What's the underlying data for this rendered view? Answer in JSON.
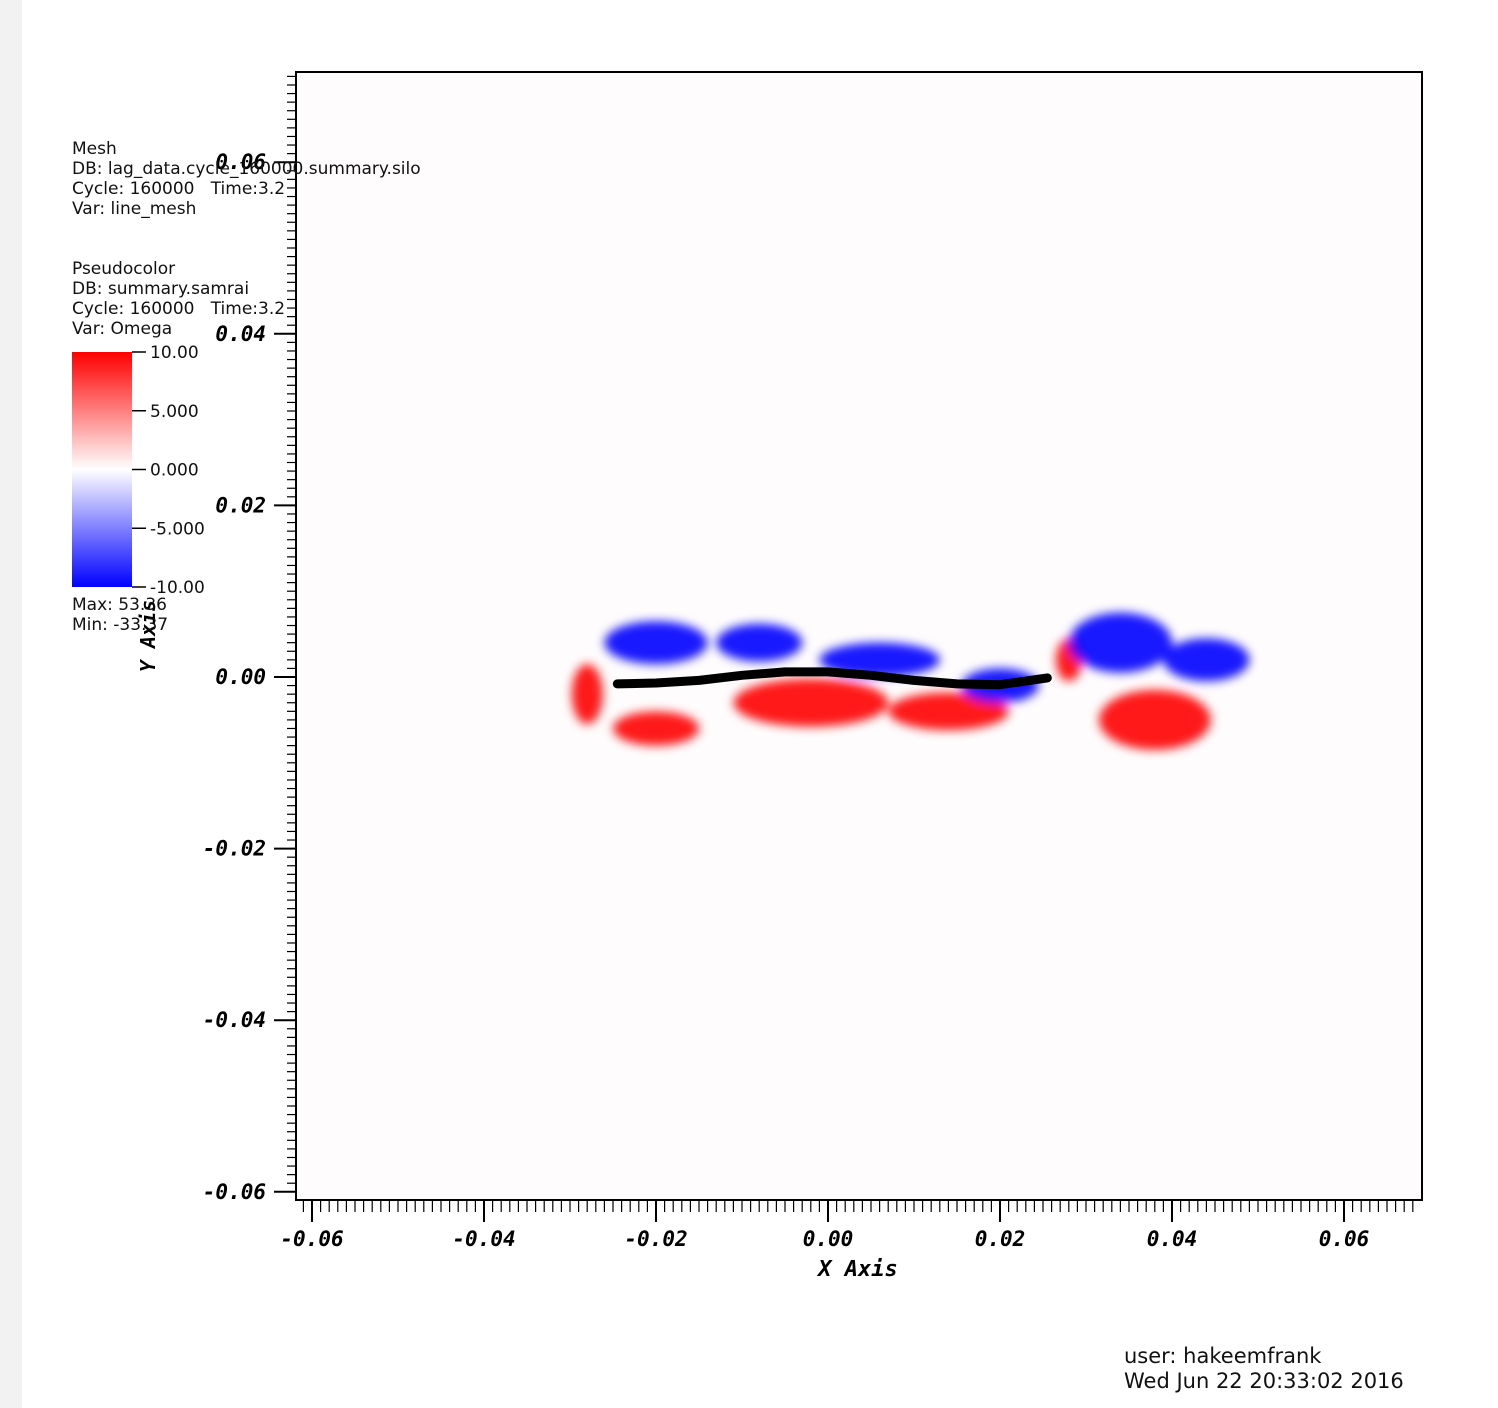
{
  "chart_data": {
    "type": "heatmap",
    "xlabel": "X Axis",
    "ylabel": "Y Axis",
    "xlim": [
      -0.062,
      0.069
    ],
    "ylim": [
      -0.061,
      0.071
    ],
    "x_ticks": [
      -0.06,
      -0.04,
      -0.02,
      0.0,
      0.02,
      0.04,
      0.06
    ],
    "y_ticks": [
      -0.06,
      -0.04,
      -0.02,
      0.0,
      0.02,
      0.04,
      0.06
    ],
    "x_tick_labels": [
      "-0.06",
      "-0.04",
      "-0.02",
      "0.00",
      "0.02",
      "0.04",
      "0.06"
    ],
    "y_tick_labels": [
      "-0.06",
      "-0.04",
      "-0.02",
      "0.00",
      "0.02",
      "0.04",
      "0.06"
    ],
    "colorbar": {
      "min": -10.0,
      "max": 10.0,
      "ticks": [
        10.0,
        5.0,
        0.0,
        -5.0,
        -10.0
      ],
      "tick_labels": [
        "10.00",
        "5.000",
        "0.000",
        "-5.000",
        "-10.00"
      ],
      "colors": {
        "high": "#ff0000",
        "mid": "#ffffff",
        "low": "#0000ff"
      }
    },
    "vorticity_regions": [
      {
        "sign": "positive",
        "cx": -0.028,
        "cy": -0.002,
        "rx": 0.0018,
        "ry": 0.0035
      },
      {
        "sign": "positive",
        "cx": -0.02,
        "cy": -0.006,
        "rx": 0.005,
        "ry": 0.002
      },
      {
        "sign": "positive",
        "cx": -0.002,
        "cy": -0.003,
        "rx": 0.009,
        "ry": 0.0028
      },
      {
        "sign": "positive",
        "cx": 0.014,
        "cy": -0.004,
        "rx": 0.007,
        "ry": 0.0022
      },
      {
        "sign": "positive",
        "cx": 0.028,
        "cy": 0.002,
        "rx": 0.0015,
        "ry": 0.0025
      },
      {
        "sign": "positive",
        "cx": 0.038,
        "cy": -0.005,
        "rx": 0.0065,
        "ry": 0.0035
      },
      {
        "sign": "negative",
        "cx": -0.02,
        "cy": 0.004,
        "rx": 0.006,
        "ry": 0.0025
      },
      {
        "sign": "negative",
        "cx": -0.008,
        "cy": 0.004,
        "rx": 0.005,
        "ry": 0.0022
      },
      {
        "sign": "negative",
        "cx": 0.006,
        "cy": 0.002,
        "rx": 0.007,
        "ry": 0.002
      },
      {
        "sign": "negative",
        "cx": 0.02,
        "cy": -0.001,
        "rx": 0.0045,
        "ry": 0.002
      },
      {
        "sign": "negative",
        "cx": 0.034,
        "cy": 0.004,
        "rx": 0.006,
        "ry": 0.0035
      },
      {
        "sign": "negative",
        "cx": 0.044,
        "cy": 0.002,
        "rx": 0.005,
        "ry": 0.0025
      }
    ],
    "line_mesh": {
      "x": [
        -0.0245,
        -0.02,
        -0.015,
        -0.01,
        -0.005,
        0.0,
        0.005,
        0.01,
        0.015,
        0.02,
        0.0255
      ],
      "y": [
        -0.0008,
        -0.0007,
        -0.0004,
        0.0002,
        0.0006,
        0.0006,
        0.0002,
        -0.0004,
        -0.0008,
        -0.0009,
        -0.0001
      ]
    }
  },
  "legend": {
    "mesh": {
      "title": "Mesh",
      "db": "DB: lag_data.cycle_160000.summary.silo",
      "cycle": "Cycle: 160000   Time:3.2",
      "var": "Var: line_mesh"
    },
    "pseudocolor": {
      "title": "Pseudocolor",
      "db": "DB: summary.samrai",
      "cycle": "Cycle: 160000   Time:3.2",
      "var": "Var: Omega",
      "max": "Max: 53.36",
      "min": "Min: -33.37"
    }
  },
  "footer": {
    "user": "user: hakeemfrank",
    "date": "Wed Jun 22 20:33:02 2016"
  }
}
